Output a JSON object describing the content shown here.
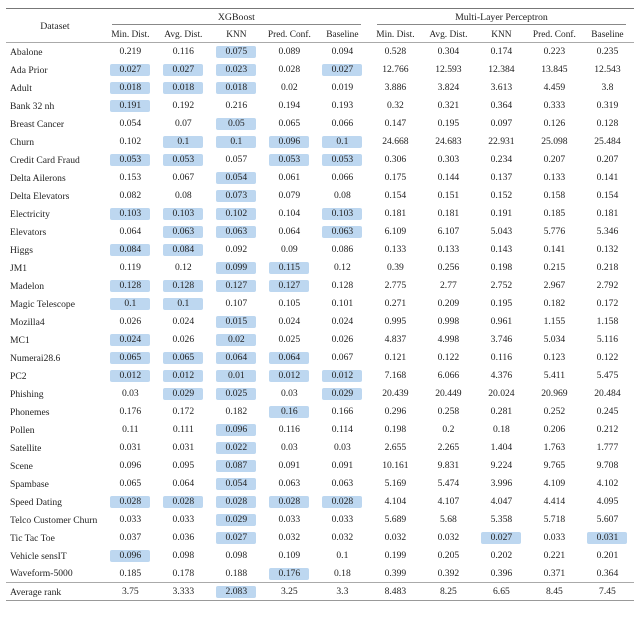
{
  "caption_groups": [
    "XGBoost",
    "Multi-Layer Perceptron"
  ],
  "dataset_header": "Dataset",
  "columns": [
    "Min. Dist.",
    "Avg. Dist.",
    "KNN",
    "Pred. Conf.",
    "Baseline",
    "Min. Dist.",
    "Avg. Dist.",
    "KNN",
    "Pred. Conf.",
    "Baseline"
  ],
  "highlight_color": "#bdd7f0",
  "rows": [
    {
      "name": "Abalone",
      "vals": [
        "0.219",
        "0.116",
        "0.075",
        "0.089",
        "0.094",
        "0.528",
        "0.304",
        "0.174",
        "0.223",
        "0.235"
      ],
      "hl": [
        0,
        0,
        1,
        0,
        0,
        0,
        0,
        0,
        0,
        0
      ]
    },
    {
      "name": "Ada Prior",
      "vals": [
        "0.027",
        "0.027",
        "0.023",
        "0.028",
        "0.027",
        "12.766",
        "12.593",
        "12.384",
        "13.845",
        "12.543"
      ],
      "hl": [
        1,
        1,
        1,
        0,
        1,
        0,
        0,
        0,
        0,
        0
      ]
    },
    {
      "name": "Adult",
      "vals": [
        "0.018",
        "0.018",
        "0.018",
        "0.02",
        "0.019",
        "3.886",
        "3.824",
        "3.613",
        "4.459",
        "3.8"
      ],
      "hl": [
        1,
        1,
        1,
        0,
        0,
        0,
        0,
        0,
        0,
        0
      ]
    },
    {
      "name": "Bank 32 nh",
      "vals": [
        "0.191",
        "0.192",
        "0.216",
        "0.194",
        "0.193",
        "0.32",
        "0.321",
        "0.364",
        "0.333",
        "0.319"
      ],
      "hl": [
        1,
        0,
        0,
        0,
        0,
        0,
        0,
        0,
        0,
        0
      ]
    },
    {
      "name": "Breast Cancer",
      "vals": [
        "0.054",
        "0.07",
        "0.05",
        "0.065",
        "0.066",
        "0.147",
        "0.195",
        "0.097",
        "0.126",
        "0.128"
      ],
      "hl": [
        0,
        0,
        1,
        0,
        0,
        0,
        0,
        0,
        0,
        0
      ]
    },
    {
      "name": "Churn",
      "vals": [
        "0.102",
        "0.1",
        "0.1",
        "0.096",
        "0.1",
        "24.668",
        "24.683",
        "22.931",
        "25.098",
        "25.484"
      ],
      "hl": [
        0,
        1,
        1,
        1,
        1,
        0,
        0,
        0,
        0,
        0
      ]
    },
    {
      "name": "Credit Card Fraud",
      "vals": [
        "0.053",
        "0.053",
        "0.057",
        "0.053",
        "0.053",
        "0.306",
        "0.303",
        "0.234",
        "0.207",
        "0.207"
      ],
      "hl": [
        1,
        1,
        0,
        1,
        1,
        0,
        0,
        0,
        0,
        0
      ]
    },
    {
      "name": "Delta Ailerons",
      "vals": [
        "0.153",
        "0.067",
        "0.054",
        "0.061",
        "0.066",
        "0.175",
        "0.144",
        "0.137",
        "0.133",
        "0.141"
      ],
      "hl": [
        0,
        0,
        1,
        0,
        0,
        0,
        0,
        0,
        0,
        0
      ]
    },
    {
      "name": "Delta Elevators",
      "vals": [
        "0.082",
        "0.08",
        "0.073",
        "0.079",
        "0.08",
        "0.154",
        "0.151",
        "0.152",
        "0.158",
        "0.154"
      ],
      "hl": [
        0,
        0,
        1,
        0,
        0,
        0,
        0,
        0,
        0,
        0
      ]
    },
    {
      "name": "Electricity",
      "vals": [
        "0.103",
        "0.103",
        "0.102",
        "0.104",
        "0.103",
        "0.181",
        "0.181",
        "0.191",
        "0.185",
        "0.181"
      ],
      "hl": [
        1,
        1,
        1,
        0,
        1,
        0,
        0,
        0,
        0,
        0
      ]
    },
    {
      "name": "Elevators",
      "vals": [
        "0.064",
        "0.063",
        "0.063",
        "0.064",
        "0.063",
        "6.109",
        "6.107",
        "5.043",
        "5.776",
        "5.346"
      ],
      "hl": [
        0,
        1,
        1,
        0,
        1,
        0,
        0,
        0,
        0,
        0
      ]
    },
    {
      "name": "Higgs",
      "vals": [
        "0.084",
        "0.084",
        "0.092",
        "0.09",
        "0.086",
        "0.133",
        "0.133",
        "0.143",
        "0.141",
        "0.132"
      ],
      "hl": [
        1,
        1,
        0,
        0,
        0,
        0,
        0,
        0,
        0,
        0
      ]
    },
    {
      "name": "JM1",
      "vals": [
        "0.119",
        "0.12",
        "0.099",
        "0.115",
        "0.12",
        "0.39",
        "0.256",
        "0.198",
        "0.215",
        "0.218"
      ],
      "hl": [
        0,
        0,
        1,
        1,
        0,
        0,
        0,
        0,
        0,
        0
      ]
    },
    {
      "name": "Madelon",
      "vals": [
        "0.128",
        "0.128",
        "0.127",
        "0.127",
        "0.128",
        "2.775",
        "2.77",
        "2.752",
        "2.967",
        "2.792"
      ],
      "hl": [
        1,
        1,
        1,
        1,
        0,
        0,
        0,
        0,
        0,
        0
      ]
    },
    {
      "name": "Magic Telescope",
      "vals": [
        "0.1",
        "0.1",
        "0.107",
        "0.105",
        "0.101",
        "0.271",
        "0.209",
        "0.195",
        "0.182",
        "0.172"
      ],
      "hl": [
        1,
        1,
        0,
        0,
        0,
        0,
        0,
        0,
        0,
        0
      ]
    },
    {
      "name": "Mozilla4",
      "vals": [
        "0.026",
        "0.024",
        "0.015",
        "0.024",
        "0.024",
        "0.995",
        "0.998",
        "0.961",
        "1.155",
        "1.158"
      ],
      "hl": [
        0,
        0,
        1,
        0,
        0,
        0,
        0,
        0,
        0,
        0
      ]
    },
    {
      "name": "MC1",
      "vals": [
        "0.024",
        "0.026",
        "0.02",
        "0.025",
        "0.026",
        "4.837",
        "4.998",
        "3.746",
        "5.034",
        "5.116"
      ],
      "hl": [
        1,
        0,
        1,
        0,
        0,
        0,
        0,
        0,
        0,
        0
      ]
    },
    {
      "name": "Numerai28.6",
      "vals": [
        "0.065",
        "0.065",
        "0.064",
        "0.064",
        "0.067",
        "0.121",
        "0.122",
        "0.116",
        "0.123",
        "0.122"
      ],
      "hl": [
        1,
        1,
        1,
        1,
        0,
        0,
        0,
        0,
        0,
        0
      ]
    },
    {
      "name": "PC2",
      "vals": [
        "0.012",
        "0.012",
        "0.01",
        "0.012",
        "0.012",
        "7.168",
        "6.066",
        "4.376",
        "5.411",
        "5.475"
      ],
      "hl": [
        1,
        1,
        1,
        1,
        1,
        0,
        0,
        0,
        0,
        0
      ]
    },
    {
      "name": "Phishing",
      "vals": [
        "0.03",
        "0.029",
        "0.025",
        "0.03",
        "0.029",
        "20.439",
        "20.449",
        "20.024",
        "20.969",
        "20.484"
      ],
      "hl": [
        0,
        1,
        1,
        0,
        1,
        0,
        0,
        0,
        0,
        0
      ]
    },
    {
      "name": "Phonemes",
      "vals": [
        "0.176",
        "0.172",
        "0.182",
        "0.16",
        "0.166",
        "0.296",
        "0.258",
        "0.281",
        "0.252",
        "0.245"
      ],
      "hl": [
        0,
        0,
        0,
        1,
        0,
        0,
        0,
        0,
        0,
        0
      ]
    },
    {
      "name": "Pollen",
      "vals": [
        "0.11",
        "0.111",
        "0.096",
        "0.116",
        "0.114",
        "0.198",
        "0.2",
        "0.18",
        "0.206",
        "0.212"
      ],
      "hl": [
        0,
        0,
        1,
        0,
        0,
        0,
        0,
        0,
        0,
        0
      ]
    },
    {
      "name": "Satellite",
      "vals": [
        "0.031",
        "0.031",
        "0.022",
        "0.03",
        "0.03",
        "2.655",
        "2.265",
        "1.404",
        "1.763",
        "1.777"
      ],
      "hl": [
        0,
        0,
        1,
        0,
        0,
        0,
        0,
        0,
        0,
        0
      ]
    },
    {
      "name": "Scene",
      "vals": [
        "0.096",
        "0.095",
        "0.087",
        "0.091",
        "0.091",
        "10.161",
        "9.831",
        "9.224",
        "9.765",
        "9.708"
      ],
      "hl": [
        0,
        0,
        1,
        0,
        0,
        0,
        0,
        0,
        0,
        0
      ]
    },
    {
      "name": "Spambase",
      "vals": [
        "0.065",
        "0.064",
        "0.054",
        "0.063",
        "0.063",
        "5.169",
        "5.474",
        "3.996",
        "4.109",
        "4.102"
      ],
      "hl": [
        0,
        0,
        1,
        0,
        0,
        0,
        0,
        0,
        0,
        0
      ]
    },
    {
      "name": "Speed Dating",
      "vals": [
        "0.028",
        "0.028",
        "0.028",
        "0.028",
        "0.028",
        "4.104",
        "4.107",
        "4.047",
        "4.414",
        "4.095"
      ],
      "hl": [
        1,
        1,
        1,
        1,
        1,
        0,
        0,
        0,
        0,
        0
      ]
    },
    {
      "name": "Telco Customer Churn",
      "vals": [
        "0.033",
        "0.033",
        "0.029",
        "0.033",
        "0.033",
        "5.689",
        "5.68",
        "5.358",
        "5.718",
        "5.607"
      ],
      "hl": [
        0,
        0,
        1,
        0,
        0,
        0,
        0,
        0,
        0,
        0
      ]
    },
    {
      "name": "Tic Tac Toe",
      "vals": [
        "0.037",
        "0.036",
        "0.027",
        "0.032",
        "0.032",
        "0.032",
        "0.032",
        "0.027",
        "0.033",
        "0.031"
      ],
      "hl": [
        0,
        0,
        1,
        0,
        0,
        0,
        0,
        1,
        0,
        1
      ]
    },
    {
      "name": "Vehicle sensIT",
      "vals": [
        "0.096",
        "0.098",
        "0.098",
        "0.109",
        "0.1",
        "0.199",
        "0.205",
        "0.202",
        "0.221",
        "0.201"
      ],
      "hl": [
        1,
        0,
        0,
        0,
        0,
        0,
        0,
        0,
        0,
        0
      ]
    },
    {
      "name": "Waveform-5000",
      "vals": [
        "0.185",
        "0.178",
        "0.188",
        "0.176",
        "0.18",
        "0.399",
        "0.392",
        "0.396",
        "0.371",
        "0.364"
      ],
      "hl": [
        0,
        0,
        0,
        1,
        0,
        0,
        0,
        0,
        0,
        0
      ]
    }
  ],
  "footer": {
    "name": "Average rank",
    "vals": [
      "3.75",
      "3.333",
      "2.083",
      "3.25",
      "3.3",
      "8.483",
      "8.25",
      "6.65",
      "8.45",
      "7.45"
    ],
    "hl": [
      0,
      0,
      1,
      0,
      0,
      0,
      0,
      0,
      0,
      0
    ]
  }
}
